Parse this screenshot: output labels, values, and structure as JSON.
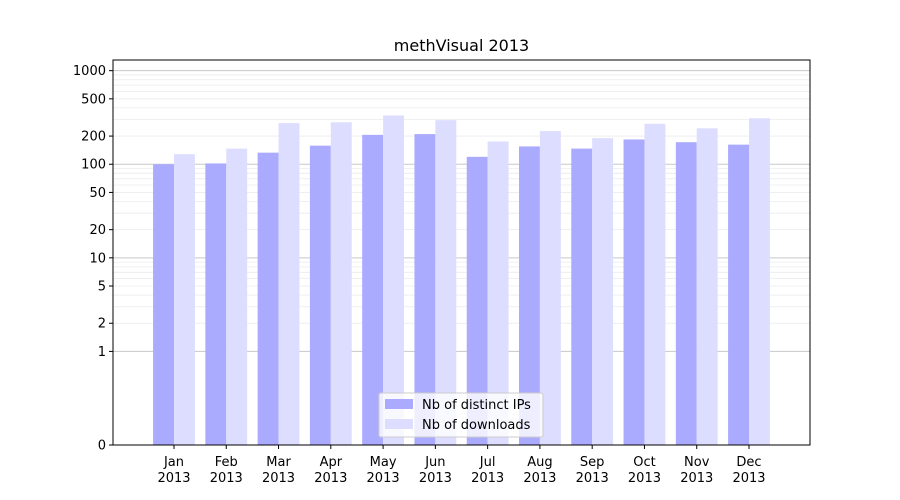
{
  "chart_data": {
    "type": "bar",
    "title": "methVisual 2013",
    "xlabel": "",
    "ylabel": "",
    "yscale": "symlog",
    "ylim": [
      0,
      1300
    ],
    "yticks": [
      0,
      1,
      2,
      5,
      10,
      20,
      50,
      100,
      200,
      500,
      1000
    ],
    "grid": true,
    "legend_position": "bottom-center",
    "categories": [
      "Jan\n2013",
      "Feb\n2013",
      "Mar\n2013",
      "Apr\n2013",
      "May\n2013",
      "Jun\n2013",
      "Jul\n2013",
      "Aug\n2013",
      "Sep\n2013",
      "Oct\n2013",
      "Nov\n2013",
      "Dec\n2013"
    ],
    "series": [
      {
        "name": "Nb of distinct IPs",
        "color": "#aaaaff",
        "values": [
          100,
          102,
          133,
          158,
          206,
          210,
          120,
          155,
          147,
          184,
          172,
          162
        ]
      },
      {
        "name": "Nb of downloads",
        "color": "#ddddff",
        "values": [
          128,
          147,
          275,
          281,
          332,
          296,
          175,
          226,
          190,
          271,
          242,
          310
        ]
      }
    ]
  }
}
